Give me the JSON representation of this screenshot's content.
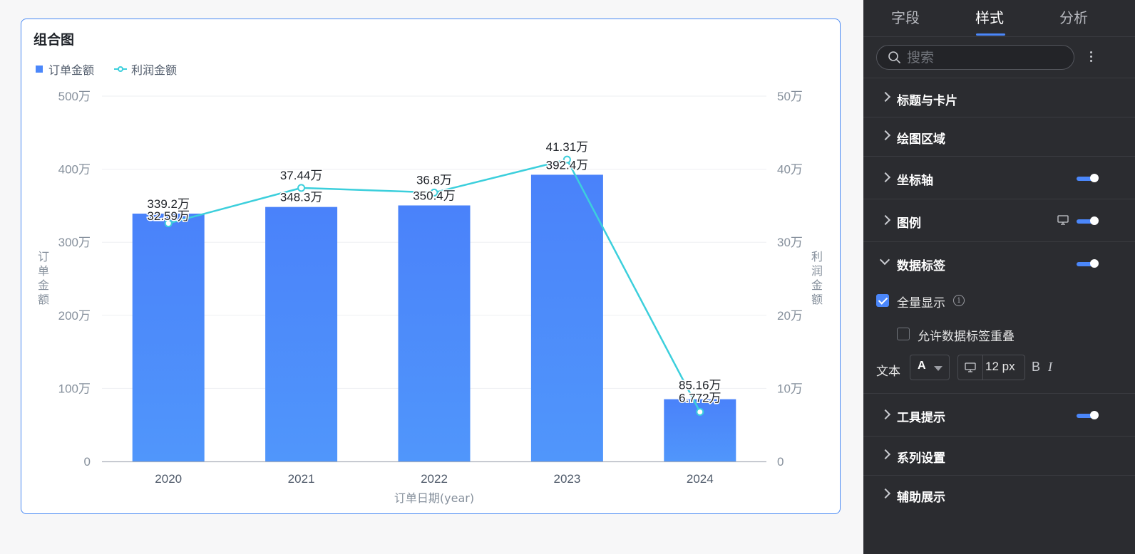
{
  "chart_card": {
    "title": "组合图",
    "legend": [
      {
        "label": "订单金额",
        "kind": "bar",
        "color": "#4b87fa"
      },
      {
        "label": "利润金额",
        "kind": "line",
        "color": "#3ccfdc"
      }
    ]
  },
  "chart_data": {
    "type": "bar",
    "combo": true,
    "categories": [
      "2020",
      "2021",
      "2022",
      "2023",
      "2024"
    ],
    "series": [
      {
        "name": "订单金额",
        "type": "bar",
        "axis": "left",
        "color": "#4b87fa",
        "values": [
          339.2,
          348.3,
          350.4,
          392.4,
          85.16
        ],
        "labels": [
          "339.2万",
          "348.3万",
          "350.4万",
          "392.4万",
          "85.16万"
        ]
      },
      {
        "name": "利润金额",
        "type": "line",
        "axis": "right",
        "color": "#3ccfdc",
        "values": [
          32.59,
          37.44,
          36.8,
          41.31,
          6.772
        ],
        "labels": [
          "32.59万",
          "37.44万",
          "36.8万",
          "41.31万",
          "6.772万"
        ]
      }
    ],
    "xlabel": "订单日期(year)",
    "ylabel_left": "订单金额",
    "ylabel_right": "利润金额",
    "ylim_left": [
      0,
      500
    ],
    "ylim_right": [
      0,
      50
    ],
    "left_ticks": [
      "0",
      "100万",
      "200万",
      "300万",
      "400万",
      "500万"
    ],
    "right_ticks": [
      "0",
      "10万",
      "20万",
      "30万",
      "40万",
      "50万"
    ],
    "grid": true
  },
  "panel": {
    "tabs": [
      {
        "label": "字段",
        "active": false
      },
      {
        "label": "样式",
        "active": true
      },
      {
        "label": "分析",
        "active": false
      }
    ],
    "search_placeholder": "搜索",
    "sections": {
      "title_card": "标题与卡片",
      "plot_area": "绘图区域",
      "axis": "坐标轴",
      "legend": "图例",
      "data_labels": "数据标签",
      "tooltip": "工具提示",
      "series": "系列设置",
      "auxiliary": "辅助展示"
    },
    "toggles": {
      "axis": true,
      "legend": true,
      "data_labels": true,
      "tooltip": true
    },
    "data_label_options": {
      "show_all": "全量显示",
      "show_all_checked": true,
      "allow_overlap": "允许数据标签重叠",
      "allow_overlap_checked": false,
      "text_label": "文本",
      "font_color_glyph": "A",
      "font_size": "12 px",
      "bold": "B",
      "italic": "I"
    }
  }
}
